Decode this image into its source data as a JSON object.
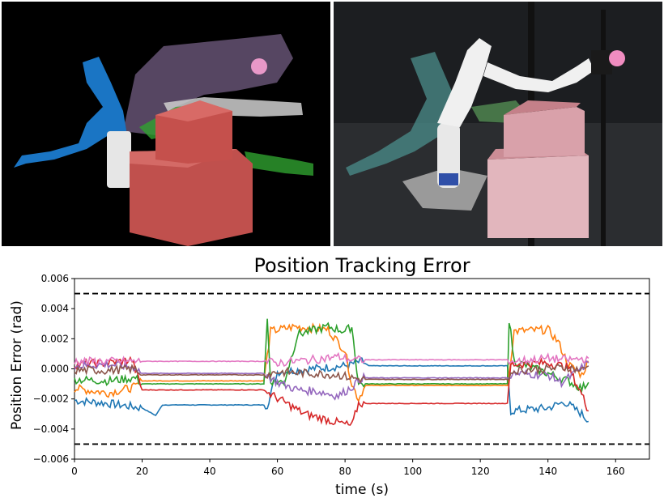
{
  "chart_data": {
    "type": "line",
    "title": "Position Tracking Error",
    "xlabel": "time (s)",
    "ylabel": "Position Error (rad)",
    "xlim": [
      0,
      170
    ],
    "ylim": [
      -0.006,
      0.006
    ],
    "xticks": [
      "0",
      "20",
      "40",
      "60",
      "80",
      "100",
      "120",
      "140",
      "160"
    ],
    "yticks": [
      "−0.006",
      "−0.004",
      "−0.002",
      "0.000",
      "0.002",
      "0.004",
      "0.006"
    ],
    "limits": [
      0.005,
      -0.005
    ],
    "grid": false,
    "series": [
      {
        "color": "#1f77b4",
        "points": [
          [
            0,
            -0.0021
          ],
          [
            10,
            -0.0023
          ],
          [
            20,
            -0.0026
          ],
          [
            24,
            -0.0031
          ],
          [
            26,
            -0.0024
          ],
          [
            57,
            -0.0024
          ],
          [
            60,
            -0.0002
          ],
          [
            70,
            0.0
          ],
          [
            80,
            0.0002
          ],
          [
            85,
            0.0005
          ],
          [
            87,
            0.0002
          ],
          [
            128,
            0.0002
          ],
          [
            129,
            -0.0028
          ],
          [
            140,
            -0.0026
          ],
          [
            145,
            -0.0022
          ],
          [
            150,
            -0.003
          ],
          [
            152,
            -0.0035
          ]
        ]
      },
      {
        "color": "#ff7f0e",
        "points": [
          [
            0,
            -0.0013
          ],
          [
            10,
            -0.0016
          ],
          [
            18,
            -0.0012
          ],
          [
            20,
            -0.0008
          ],
          [
            22,
            -0.0008
          ],
          [
            56,
            -0.0008
          ],
          [
            58,
            0.0025
          ],
          [
            65,
            0.0028
          ],
          [
            75,
            0.0026
          ],
          [
            80,
            0.0012
          ],
          [
            82,
            -0.001
          ],
          [
            84,
            -0.002
          ],
          [
            86,
            -0.0011
          ],
          [
            128,
            -0.0011
          ],
          [
            130,
            0.0025
          ],
          [
            140,
            0.0026
          ],
          [
            143,
            0.0018
          ],
          [
            146,
            0.0003
          ],
          [
            150,
            -0.0004
          ],
          [
            152,
            0.0005
          ]
        ]
      },
      {
        "color": "#2ca02c",
        "points": [
          [
            0,
            -0.0007
          ],
          [
            10,
            -0.0008
          ],
          [
            18,
            -0.0006
          ],
          [
            20,
            -0.001
          ],
          [
            22,
            -0.001
          ],
          [
            56,
            -0.001
          ],
          [
            57,
            0.0033
          ],
          [
            58,
            -0.0008
          ],
          [
            62,
            -0.0009
          ],
          [
            66,
            0.0023
          ],
          [
            75,
            0.0028
          ],
          [
            80,
            0.0025
          ],
          [
            82,
            0.0028
          ],
          [
            84,
            -0.001
          ],
          [
            128,
            -0.001
          ],
          [
            128.5,
            0.0033
          ],
          [
            130,
            0.0005
          ],
          [
            140,
            -0.0003
          ],
          [
            146,
            -0.0008
          ],
          [
            150,
            -0.0013
          ],
          [
            152,
            -0.0009
          ]
        ]
      },
      {
        "color": "#d62728",
        "points": [
          [
            0,
            0.0003
          ],
          [
            10,
            0.0004
          ],
          [
            17,
            0.0006
          ],
          [
            20,
            -0.0014
          ],
          [
            56,
            -0.0014
          ],
          [
            58,
            -0.0017
          ],
          [
            62,
            -0.0022
          ],
          [
            68,
            -0.003
          ],
          [
            75,
            -0.0034
          ],
          [
            82,
            -0.0038
          ],
          [
            84,
            -0.0023
          ],
          [
            128,
            -0.0023
          ],
          [
            129,
            0.0003
          ],
          [
            140,
            0.0004
          ],
          [
            146,
            0.0001
          ],
          [
            150,
            -0.0017
          ],
          [
            152,
            -0.0028
          ]
        ]
      },
      {
        "color": "#9467bd",
        "points": [
          [
            0,
            0.0002
          ],
          [
            10,
            0.0003
          ],
          [
            18,
            0.0001
          ],
          [
            20,
            -0.0003
          ],
          [
            56,
            -0.0003
          ],
          [
            60,
            -0.0009
          ],
          [
            66,
            -0.0014
          ],
          [
            72,
            -0.0015
          ],
          [
            78,
            -0.0018
          ],
          [
            82,
            -0.0012
          ],
          [
            85,
            -0.0006
          ],
          [
            128,
            -0.0006
          ],
          [
            130,
            -0.0003
          ],
          [
            140,
            -0.0004
          ],
          [
            144,
            -0.0009
          ],
          [
            148,
            -0.0003
          ],
          [
            152,
            0.0004
          ]
        ]
      },
      {
        "color": "#8c564b",
        "points": [
          [
            0,
            -0.0001
          ],
          [
            10,
            -0.0001
          ],
          [
            18,
            0.0
          ],
          [
            20,
            -0.0004
          ],
          [
            56,
            -0.0004
          ],
          [
            60,
            -0.0002
          ],
          [
            70,
            -0.0003
          ],
          [
            78,
            -0.0004
          ],
          [
            82,
            -0.0006
          ],
          [
            85,
            -0.0007
          ],
          [
            128,
            -0.0007
          ],
          [
            130,
            -0.0001
          ],
          [
            140,
            0.0
          ],
          [
            146,
            0.0001
          ],
          [
            150,
            -0.0001
          ],
          [
            152,
            0.0002
          ]
        ]
      },
      {
        "color": "#e377c2",
        "points": [
          [
            0,
            0.0005
          ],
          [
            10,
            0.0005
          ],
          [
            20,
            0.0005
          ],
          [
            56,
            0.0005
          ],
          [
            60,
            0.0004
          ],
          [
            70,
            0.0006
          ],
          [
            78,
            0.0008
          ],
          [
            82,
            0.0006
          ],
          [
            85,
            0.0006
          ],
          [
            128,
            0.0006
          ],
          [
            130,
            0.0005
          ],
          [
            140,
            0.0007
          ],
          [
            146,
            0.0006
          ],
          [
            152,
            0.0007
          ]
        ]
      }
    ]
  }
}
